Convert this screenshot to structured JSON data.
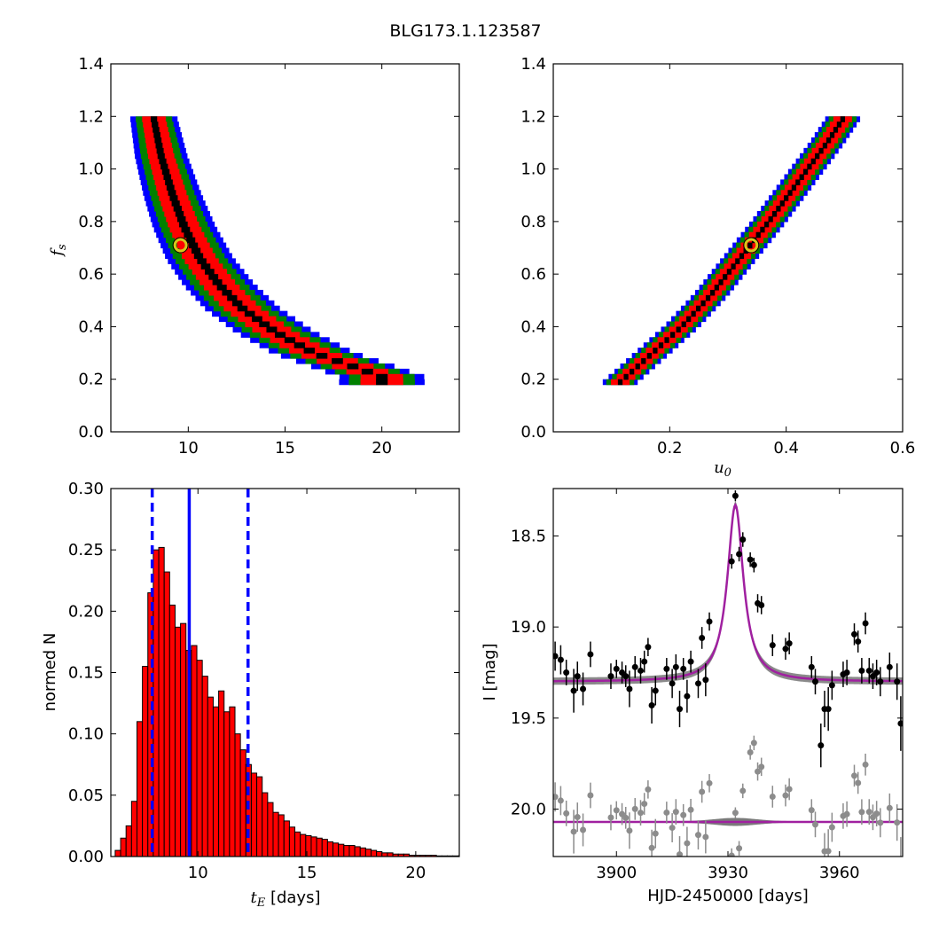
{
  "figure": {
    "title": "BLG173.1.123587"
  },
  "chart_data": [
    {
      "panel": "tE-fs",
      "type": "heatmap",
      "xlabel": "",
      "ylabel": "f_s",
      "xlim": [
        6,
        24
      ],
      "ylim": [
        0.0,
        1.4
      ],
      "xticks": [
        "10",
        "15",
        "20"
      ],
      "yticks": [
        "0.0",
        "0.2",
        "0.4",
        "0.6",
        "0.8",
        "1.0",
        "1.2",
        "1.4"
      ],
      "best_fit": {
        "x": 9.6,
        "y": 0.71
      },
      "band_centerline": [
        [
          8.2,
          1.2
        ],
        [
          8.6,
          1.05
        ],
        [
          9.2,
          0.9
        ],
        [
          9.8,
          0.78
        ],
        [
          10.6,
          0.66
        ],
        [
          11.6,
          0.56
        ],
        [
          12.8,
          0.47
        ],
        [
          14.5,
          0.38
        ],
        [
          16.5,
          0.3
        ],
        [
          18.5,
          0.25
        ],
        [
          20.0,
          0.21
        ]
      ],
      "band_levels": [
        {
          "name": "",
          "color": "#0000ff",
          "halfwidth_tE": 2.2
        },
        {
          "name": "",
          "color": "#008000",
          "halfwidth_tE": 1.7
        },
        {
          "name": "",
          "color": "#ff0000",
          "halfwidth_tE": 1.1
        },
        {
          "name": "",
          "color": "#000000",
          "halfwidth_tE": 0.3
        }
      ]
    },
    {
      "panel": "u0-fs",
      "type": "heatmap",
      "xlabel": "u_0",
      "ylabel": "",
      "xlim": [
        0.0,
        0.6
      ],
      "ylim": [
        0.0,
        1.4
      ],
      "xticks": [
        "0.2",
        "0.4",
        "0.6"
      ],
      "yticks": [
        "0.0",
        "0.2",
        "0.4",
        "0.6",
        "0.8",
        "1.0",
        "1.2",
        "1.4"
      ],
      "best_fit": {
        "x": 0.34,
        "y": 0.71
      },
      "band_centerline": [
        [
          0.115,
          0.19
        ],
        [
          0.17,
          0.3
        ],
        [
          0.22,
          0.4
        ],
        [
          0.27,
          0.52
        ],
        [
          0.32,
          0.66
        ],
        [
          0.37,
          0.8
        ],
        [
          0.42,
          0.95
        ],
        [
          0.47,
          1.1
        ],
        [
          0.5,
          1.2
        ]
      ],
      "band_levels": [
        {
          "name": "",
          "color": "#0000ff",
          "halfwidth_u0": 0.03
        },
        {
          "name": "",
          "color": "#008000",
          "halfwidth_u0": 0.024
        },
        {
          "name": "",
          "color": "#ff0000",
          "halfwidth_u0": 0.016
        },
        {
          "name": "",
          "color": "#000000",
          "halfwidth_u0": 0.004
        }
      ]
    },
    {
      "panel": "tE-histogram",
      "type": "bar",
      "xlabel": "t_E [days]",
      "ylabel": "normed N",
      "xlim": [
        6,
        22
      ],
      "ylim": [
        0.0,
        0.3
      ],
      "xticks": [
        "10",
        "15",
        "20"
      ],
      "yticks": [
        "0.00",
        "0.05",
        "0.10",
        "0.15",
        "0.20",
        "0.25",
        "0.30"
      ],
      "bin_start": 6.2,
      "bin_width": 0.25,
      "values": [
        0.005,
        0.015,
        0.025,
        0.045,
        0.11,
        0.155,
        0.215,
        0.25,
        0.252,
        0.232,
        0.205,
        0.187,
        0.19,
        0.168,
        0.172,
        0.16,
        0.147,
        0.13,
        0.122,
        0.135,
        0.118,
        0.122,
        0.1,
        0.087,
        0.075,
        0.068,
        0.065,
        0.052,
        0.044,
        0.036,
        0.034,
        0.029,
        0.024,
        0.02,
        0.018,
        0.017,
        0.016,
        0.015,
        0.014,
        0.012,
        0.011,
        0.01,
        0.009,
        0.009,
        0.008,
        0.007,
        0.006,
        0.005,
        0.004,
        0.003,
        0.003,
        0.002,
        0.002,
        0.002,
        0.001,
        0.001,
        0.001,
        0.001,
        0.001,
        0.0005,
        0.0005,
        0.0005,
        0.0005,
        0.0005
      ],
      "color": "#ff0000",
      "median_line": 9.6,
      "interval_lines": [
        7.9,
        12.3
      ],
      "line_color": "#0000ff"
    },
    {
      "panel": "lightcurve",
      "type": "scatter",
      "xlabel": "HJD-2450000 [days]",
      "ylabel": "I [mag]",
      "xlim": [
        3883,
        3977
      ],
      "ylim": [
        20.26,
        18.24
      ],
      "xticks": [
        "3900",
        "3930",
        "3960"
      ],
      "yticks": [
        "18.5",
        "19.0",
        "19.5",
        "20.0"
      ],
      "model": {
        "t0": 3932.0,
        "baseline": 19.3,
        "peak": 18.33,
        "width": 2.6,
        "color": "#a020a0"
      },
      "residual_offset": 20.07,
      "series": [
        {
          "name": "",
          "color": "#000000",
          "x": [
            3883.5,
            3885.0,
            3886.5,
            3888.5,
            3889.5,
            3891.0,
            3893.0,
            3898.5,
            3900.0,
            3901.5,
            3902.5,
            3903.5,
            3905.0,
            3906.5,
            3907.5,
            3908.5,
            3909.5,
            3910.5,
            3913.5,
            3915.0,
            3916.0,
            3917.0,
            3918.0,
            3919.0,
            3920.0,
            3922.0,
            3923.0,
            3924.0,
            3925.0,
            3931.0,
            3932.0,
            3933.0,
            3934.0,
            3936.0,
            3937.0,
            3938.0,
            3939.0,
            3942.0,
            3945.5,
            3946.5,
            3952.5,
            3953.5,
            3955.0,
            3956.0,
            3957.0,
            3958.0,
            3961.0,
            3962.0,
            3964.0,
            3965.0,
            3966.0,
            3967.0,
            3968.0,
            3969.0,
            3970.0,
            3971.0,
            3973.5,
            3975.5,
            3976.5
          ],
          "y": [
            19.16,
            19.18,
            19.25,
            19.35,
            19.27,
            19.34,
            19.15,
            19.27,
            19.23,
            19.25,
            19.27,
            19.34,
            19.22,
            19.24,
            19.19,
            19.11,
            19.43,
            19.35,
            19.23,
            19.31,
            19.22,
            19.45,
            19.23,
            19.38,
            19.19,
            19.31,
            19.06,
            19.29,
            18.97,
            18.64,
            18.28,
            18.6,
            18.52,
            18.63,
            18.66,
            18.87,
            18.88,
            19.1,
            19.12,
            19.09,
            19.22,
            19.3,
            19.65,
            19.45,
            19.45,
            19.32,
            19.26,
            19.25,
            19.04,
            19.08,
            19.24,
            18.98,
            19.24,
            19.27,
            19.25,
            19.3,
            19.22,
            19.3,
            19.53
          ],
          "err": [
            0.08,
            0.08,
            0.07,
            0.12,
            0.08,
            0.09,
            0.07,
            0.07,
            0.05,
            0.06,
            0.06,
            0.1,
            0.06,
            0.07,
            0.06,
            0.05,
            0.1,
            0.08,
            0.06,
            0.08,
            0.07,
            0.1,
            0.06,
            0.09,
            0.06,
            0.08,
            0.06,
            0.09,
            0.05,
            0.04,
            0.03,
            0.04,
            0.04,
            0.04,
            0.04,
            0.05,
            0.05,
            0.06,
            0.06,
            0.06,
            0.06,
            0.07,
            0.12,
            0.1,
            0.12,
            0.08,
            0.07,
            0.07,
            0.06,
            0.06,
            0.07,
            0.06,
            0.07,
            0.07,
            0.07,
            0.08,
            0.08,
            0.1,
            0.15
          ]
        }
      ]
    }
  ]
}
